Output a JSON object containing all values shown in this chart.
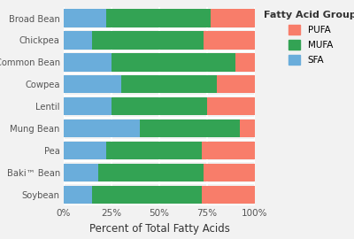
{
  "categories": [
    "Broad Bean",
    "Chickpea",
    "Common Bean",
    "Cowpea",
    "Lentil",
    "Mung Bean",
    "Pea",
    "Baki™ Bean",
    "Soybean"
  ],
  "SFA": [
    22,
    15,
    25,
    30,
    25,
    40,
    22,
    18,
    15
  ],
  "MUFA": [
    55,
    58,
    65,
    50,
    50,
    52,
    50,
    55,
    57
  ],
  "PUFA": [
    23,
    27,
    10,
    20,
    25,
    8,
    28,
    27,
    28
  ],
  "color_SFA": "#6aaddb",
  "color_MUFA": "#33a354",
  "color_PUFA": "#f87d6a",
  "xlabel": "Percent of Total Fatty Acids",
  "legend_title": "Fatty Acid Group",
  "background_color": "#f2f2f2",
  "grid_color": "#ffffff",
  "xtick_labels": [
    "0%",
    "25%",
    "50%",
    "75%",
    "100%"
  ],
  "xtick_vals": [
    0,
    25,
    50,
    75,
    100
  ]
}
